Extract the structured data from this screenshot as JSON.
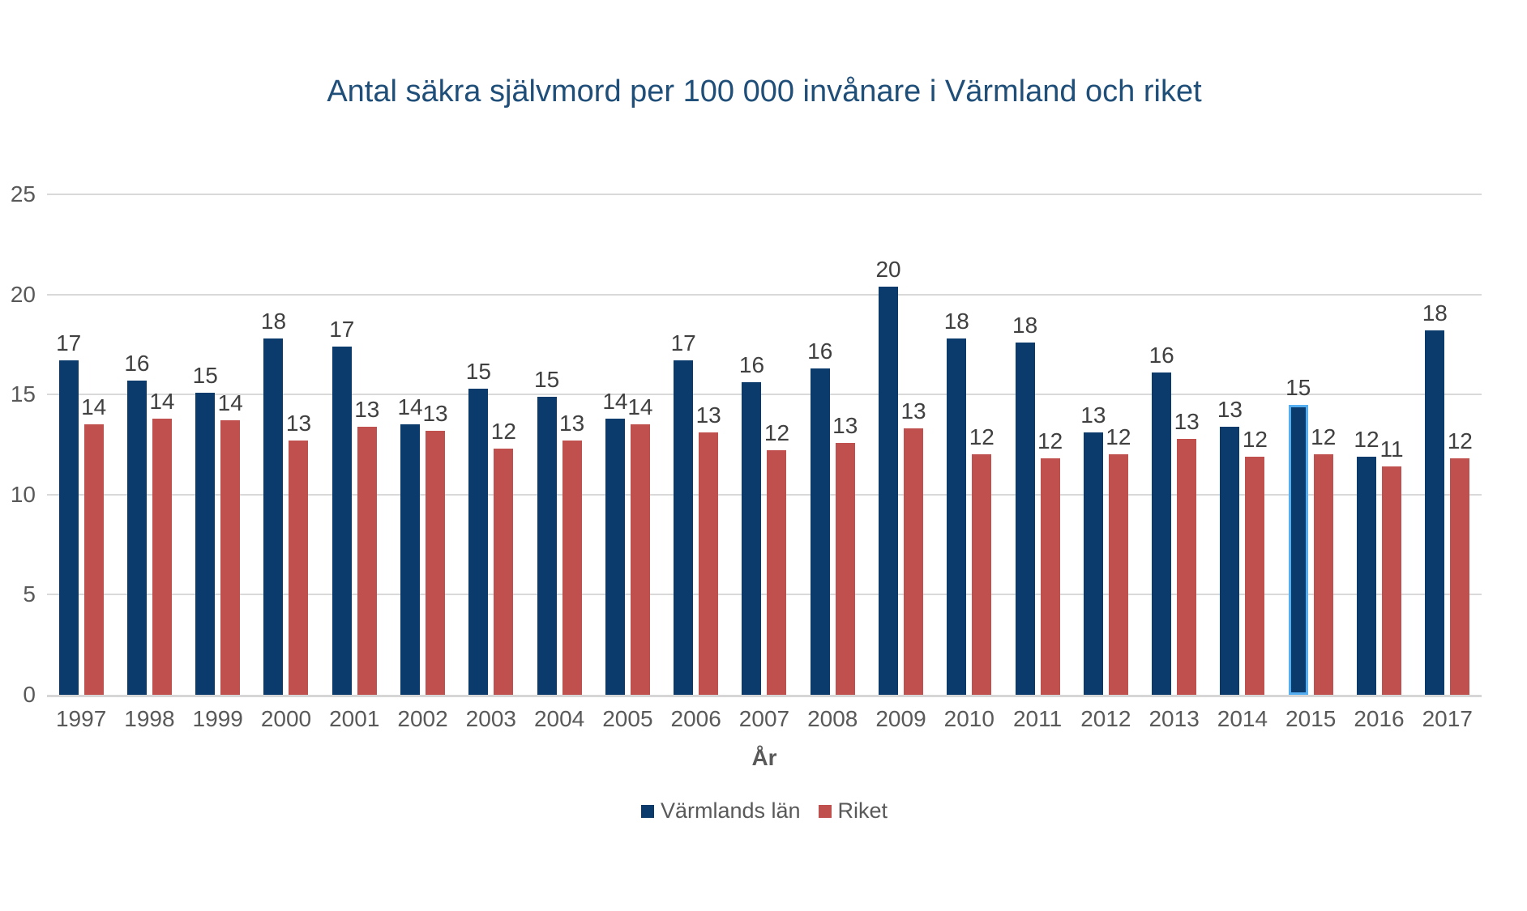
{
  "title": "Antal säkra självmord per 100 000 invånare i Värmland och riket",
  "colors": {
    "background": "#ffffff",
    "title": "#1F4E79",
    "axis_text": "#595959",
    "data_label": "#404040",
    "gridline": "#D9D9D9",
    "baseline": "#D6D6D6",
    "varmland_blue": "#0B3B6C",
    "riket_red": "#C0504D",
    "highlight_outline": "#54AEF0"
  },
  "chart_data": {
    "type": "bar",
    "title": "Antal säkra självmord per 100 000 invånare i Värmland och riket",
    "xlabel": "År",
    "ylabel": "",
    "ylim": [
      0,
      25
    ],
    "yticks": [
      0,
      5,
      10,
      15,
      20,
      25
    ],
    "grid": true,
    "legend_position": "bottom",
    "categories": [
      "1997",
      "1998",
      "1999",
      "2000",
      "2001",
      "2002",
      "2003",
      "2004",
      "2005",
      "2006",
      "2007",
      "2008",
      "2009",
      "2010",
      "2011",
      "2012",
      "2013",
      "2014",
      "2015",
      "2016",
      "2017"
    ],
    "series": [
      {
        "name": "Värmlands län",
        "color": "#0B3B6C",
        "values": [
          16.7,
          15.7,
          15.1,
          17.8,
          17.4,
          13.5,
          15.3,
          14.9,
          13.8,
          16.7,
          15.6,
          16.3,
          20.4,
          17.8,
          17.6,
          13.1,
          16.1,
          13.4,
          14.5,
          11.9,
          18.2
        ],
        "labels": [
          "17",
          "16",
          "15",
          "18",
          "17",
          "14",
          "15",
          "15",
          "14",
          "17",
          "16",
          "16",
          "20",
          "18",
          "18",
          "13",
          "16",
          "13",
          "15",
          "12",
          "18"
        ]
      },
      {
        "name": "Riket",
        "color": "#C0504D",
        "values": [
          13.5,
          13.8,
          13.7,
          12.7,
          13.4,
          13.2,
          12.3,
          12.7,
          13.5,
          13.1,
          12.2,
          12.6,
          13.3,
          12.0,
          11.8,
          12.0,
          12.8,
          11.9,
          12.0,
          11.4,
          11.8
        ],
        "labels": [
          "14",
          "14",
          "14",
          "13",
          "13",
          "13",
          "12",
          "13",
          "14",
          "13",
          "12",
          "13",
          "13",
          "12",
          "12",
          "12",
          "13",
          "12",
          "12",
          "11",
          "12"
        ]
      }
    ],
    "highlight": {
      "series_index": 0,
      "category_index": 18,
      "category": "2015",
      "outline_color": "#54AEF0"
    }
  }
}
